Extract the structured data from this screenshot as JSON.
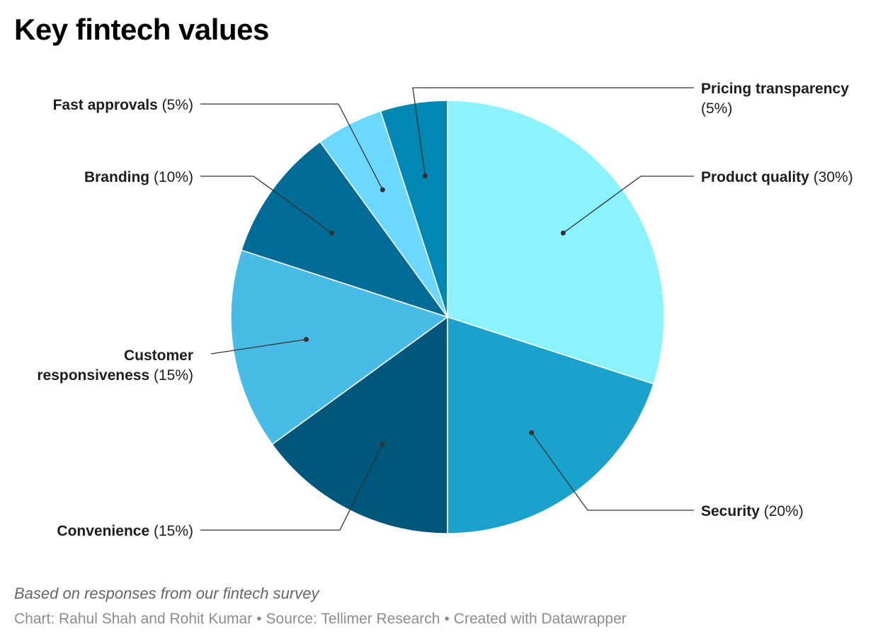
{
  "page": {
    "title": "Key fintech values"
  },
  "chart_data": {
    "type": "pie",
    "title": "Key fintech values",
    "slices": [
      {
        "label": "Product quality",
        "value": 30,
        "pct_text": "(30%)",
        "color": "#8af3ff"
      },
      {
        "label": "Security",
        "value": 20,
        "pct_text": "(20%)",
        "color": "#1aa2cd"
      },
      {
        "label": "Convenience",
        "value": 15,
        "pct_text": "(15%)",
        "color": "#00577d"
      },
      {
        "label": "Customer responsiveness",
        "value": 15,
        "pct_text": "(15%)",
        "color": "#48bbe6"
      },
      {
        "label": "Branding",
        "value": 10,
        "pct_text": "(10%)",
        "color": "#006b97"
      },
      {
        "label": "Fast approvals",
        "value": 5,
        "pct_text": "(5%)",
        "color": "#6cd8ff"
      },
      {
        "label": "Pricing transparency",
        "value": 5,
        "pct_text": "(5%)",
        "color": "#0087b3"
      }
    ]
  },
  "footer": {
    "notes": "Based on responses from our fintech survey",
    "credit_chart": "Chart: Rahul Shah and Rohit Kumar",
    "credit_source": "Source: Tellimer Research",
    "credit_tool": "Created with Datawrapper",
    "separator": "•"
  }
}
